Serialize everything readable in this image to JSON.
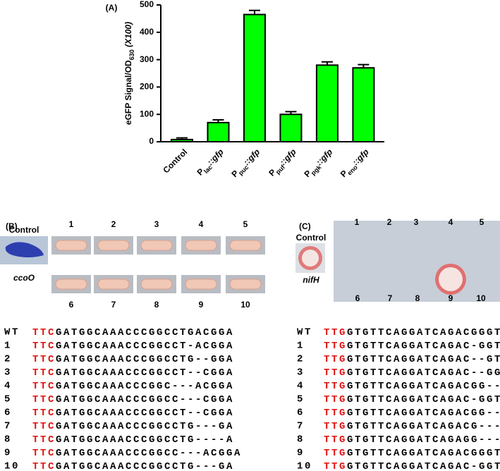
{
  "chart_data": {
    "type": "bar",
    "panel_label": "(A)",
    "ylabel": {
      "main": "eGFP Signal/OD",
      "sub": "630",
      "tail": " (X100)"
    },
    "categories": [
      "Control",
      {
        "main": "P",
        "sub": "lac",
        "tail": "::gfp"
      },
      {
        "main": "P",
        "sub": "puc",
        "tail": "::gfp"
      },
      {
        "main": "P",
        "sub": "puf",
        "tail": "::gfp"
      },
      {
        "main": "P",
        "sub": "pgk",
        "tail": "::gfp"
      },
      {
        "main": "P",
        "sub": "eno",
        "tail": "::gfp"
      }
    ],
    "values": [
      8,
      70,
      465,
      100,
      280,
      270
    ],
    "errors": [
      6,
      10,
      15,
      10,
      12,
      12
    ],
    "color": "#00ff00",
    "ylim": [
      0,
      500
    ],
    "yticks": [
      0,
      100,
      200,
      300,
      400,
      500
    ]
  },
  "panel_b": {
    "label": "(B)",
    "control": "Control",
    "gene": "ccoO",
    "numbers": [
      1,
      2,
      3,
      4,
      5,
      6,
      7,
      8,
      9,
      10
    ]
  },
  "panel_c": {
    "label": "(C)",
    "control": "Control",
    "gene": "nifH",
    "numbers": [
      1,
      2,
      3,
      4,
      5,
      6,
      7,
      8,
      9,
      10
    ]
  },
  "sequences_b": [
    {
      "label": "WT",
      "pam": "TTC",
      "seq": "GATGGCAAACCCGGCCTGACGGA"
    },
    {
      "label": "1",
      "pam": "TTC",
      "seq": "GATGGCAAACCCGGCCT-ACGGA"
    },
    {
      "label": "2",
      "pam": "TTC",
      "seq": "GATGGCAAACCCGGCCTG--GGA"
    },
    {
      "label": "3",
      "pam": "TTC",
      "seq": "GATGGCAAACCCGGCCT--CGGA"
    },
    {
      "label": "4",
      "pam": "TTC",
      "seq": "GATGGCAAACCCGGC---ACGGA"
    },
    {
      "label": "5",
      "pam": "TTC",
      "seq": "GATGGCAAACCCGGCC---CGGA"
    },
    {
      "label": "6",
      "pam": "TTC",
      "seq": "GATGGCAAACCCGGCCT--CGGA"
    },
    {
      "label": "7",
      "pam": "TTC",
      "seq": "GATGGCAAACCCGGCCTG---GA"
    },
    {
      "label": "8",
      "pam": "TTC",
      "seq": "GATGGCAAACCCGGCCTG----A"
    },
    {
      "label": "9",
      "pam": "TTC",
      "seq": "GATGGCAAACCCGGCC---ACGGA"
    },
    {
      "label": "10",
      "pam": "TTC",
      "seq": "GATGGCAAACCCGGCCTG---GA"
    }
  ],
  "sequences_c": [
    {
      "label": "WT",
      "pam": "TTG",
      "seq": "GTGTTCAGGATCAGACGGGTGCT"
    },
    {
      "label": "1",
      "pam": "TTG",
      "seq": "GTGTTCAGGATCAGAC-GGTGCT"
    },
    {
      "label": "2",
      "pam": "TTG",
      "seq": "GTGTTCAGGATCAGAC--GTGCT"
    },
    {
      "label": "3",
      "pam": "TTG",
      "seq": "GTGTTCAGGATCAGAC--GGGCT"
    },
    {
      "label": "4",
      "pam": "TTG",
      "seq": "GTGTTCAGGATCAGACGG---CT"
    },
    {
      "label": "5",
      "pam": "TTG",
      "seq": "GTGTTCAGGATCAGAC-GGTGCT"
    },
    {
      "label": "6",
      "pam": "TTG",
      "seq": "GTGTTCAGGATCAGACGG---CT"
    },
    {
      "label": "7",
      "pam": "TTG",
      "seq": "GTGTTCAGGATCAGACG----GT"
    },
    {
      "label": "8",
      "pam": "TTG",
      "seq": "GTGTTCAGGATCAGAGG---CT"
    },
    {
      "label": "9",
      "pam": "TTG",
      "seq": "GTGTTCAGGATCAGACGGGTGCT"
    },
    {
      "label": "10",
      "pam": "TTG",
      "seq": "GTGTTCAGGATCAGAC-GGTGCT"
    }
  ]
}
